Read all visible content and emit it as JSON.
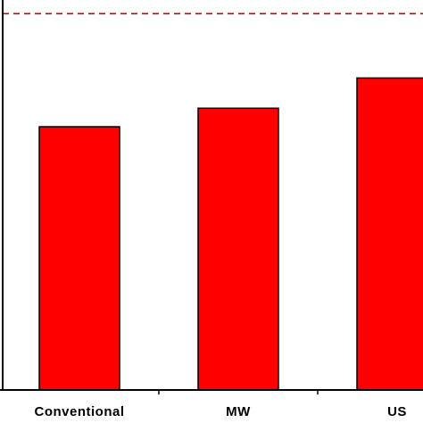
{
  "chart_data": {
    "type": "bar",
    "categories": [
      "Conventional",
      "MW",
      "US"
    ],
    "values": [
      270,
      289,
      320
    ],
    "ylim": [
      0,
      400
    ],
    "reference_line": 386,
    "bar_color": "#ff0000",
    "reference_line_color": "#cc0000",
    "title": "",
    "xlabel": "",
    "ylabel": "",
    "grid": false
  }
}
